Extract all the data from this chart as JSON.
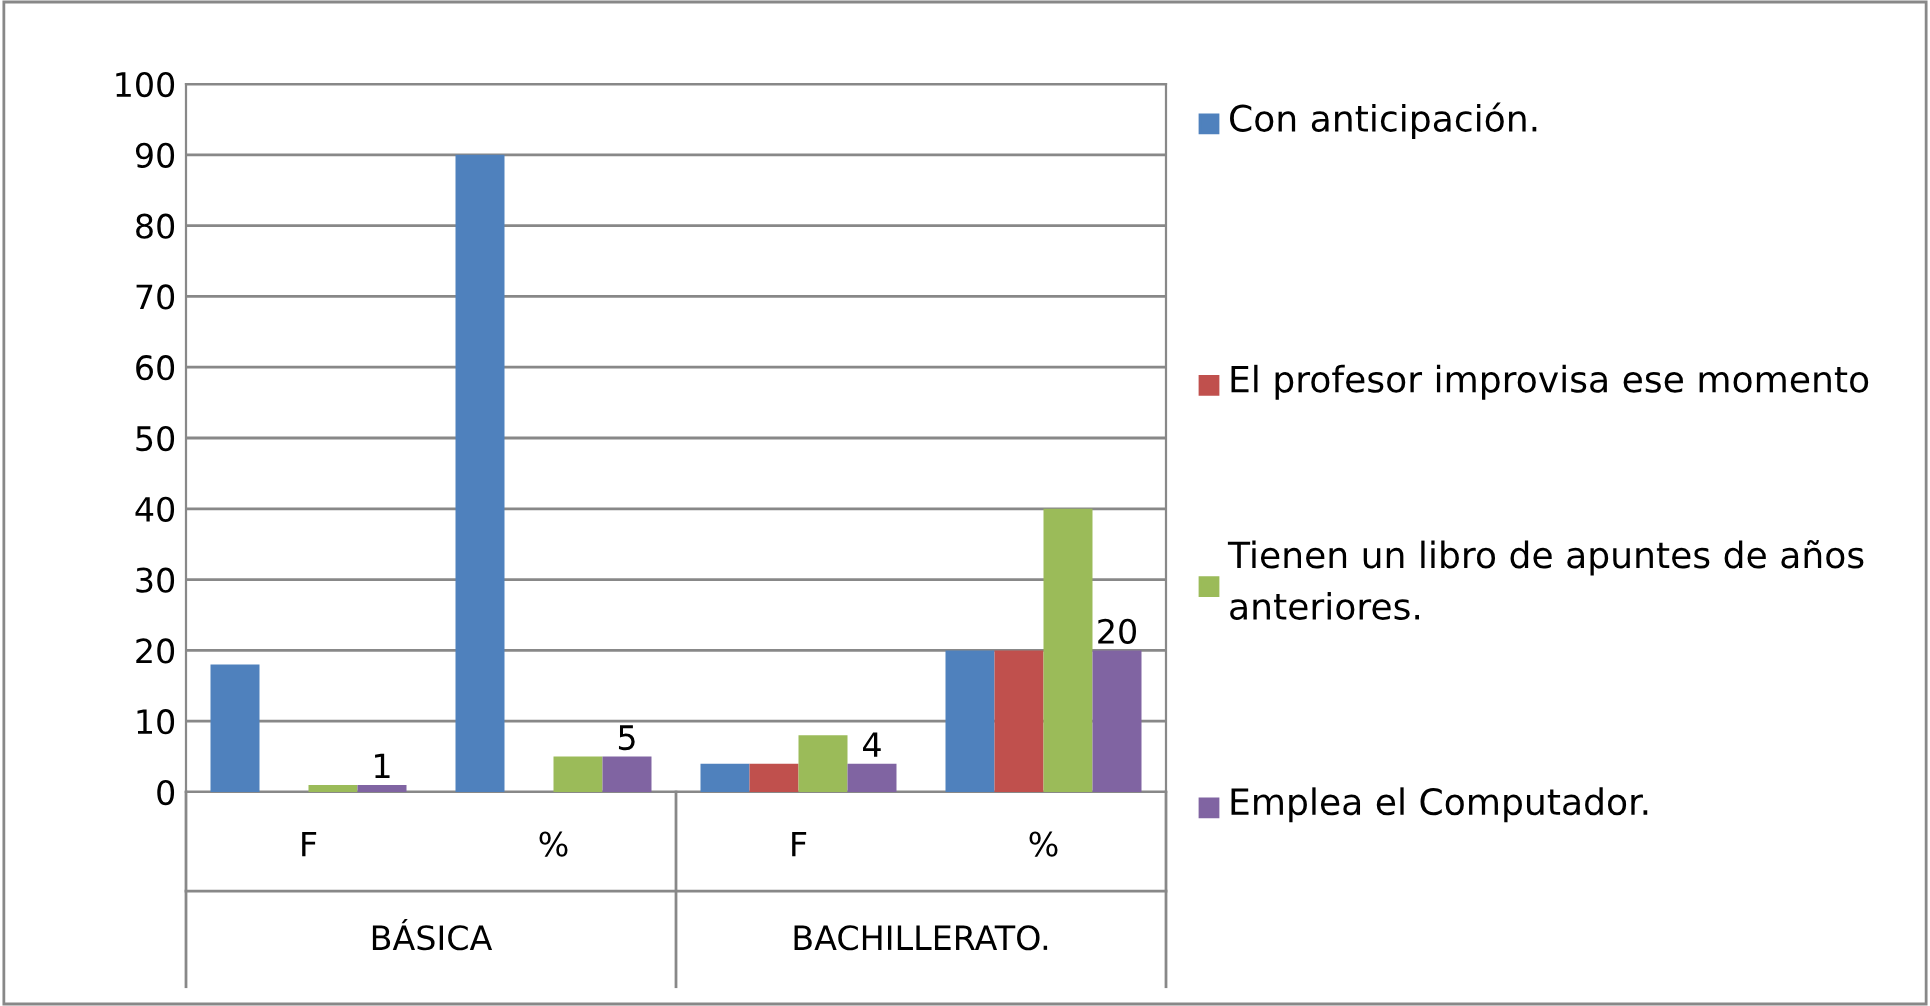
{
  "chart_data": {
    "type": "bar",
    "categories": [
      "F",
      "%",
      "F",
      "%"
    ],
    "series": [
      {
        "name": "Con anticipación.",
        "color": "#4f81bd",
        "values": [
          18,
          90,
          4,
          20
        ]
      },
      {
        "name": "El profesor improvisa ese momento",
        "color": "#c0504d",
        "values": [
          0,
          0,
          4,
          20
        ]
      },
      {
        "name": "Tienen un libro de apuntes de años anteriores.",
        "color": "#9bbb59",
        "values": [
          1,
          5,
          8,
          40
        ]
      },
      {
        "name": "Emplea el Computador.",
        "color": "#8064a2",
        "values": [
          1,
          5,
          4,
          20
        ],
        "value_labels": [
          "1",
          "5",
          "4",
          "20"
        ]
      }
    ],
    "annotations": [
      "BÁSICA",
      "BACHILLERATO."
    ],
    "ylim": [
      0,
      100
    ],
    "yticks": [
      0,
      10,
      20,
      30,
      40,
      50,
      60,
      70,
      80,
      90,
      100
    ],
    "grid": "y",
    "legend": "right"
  }
}
